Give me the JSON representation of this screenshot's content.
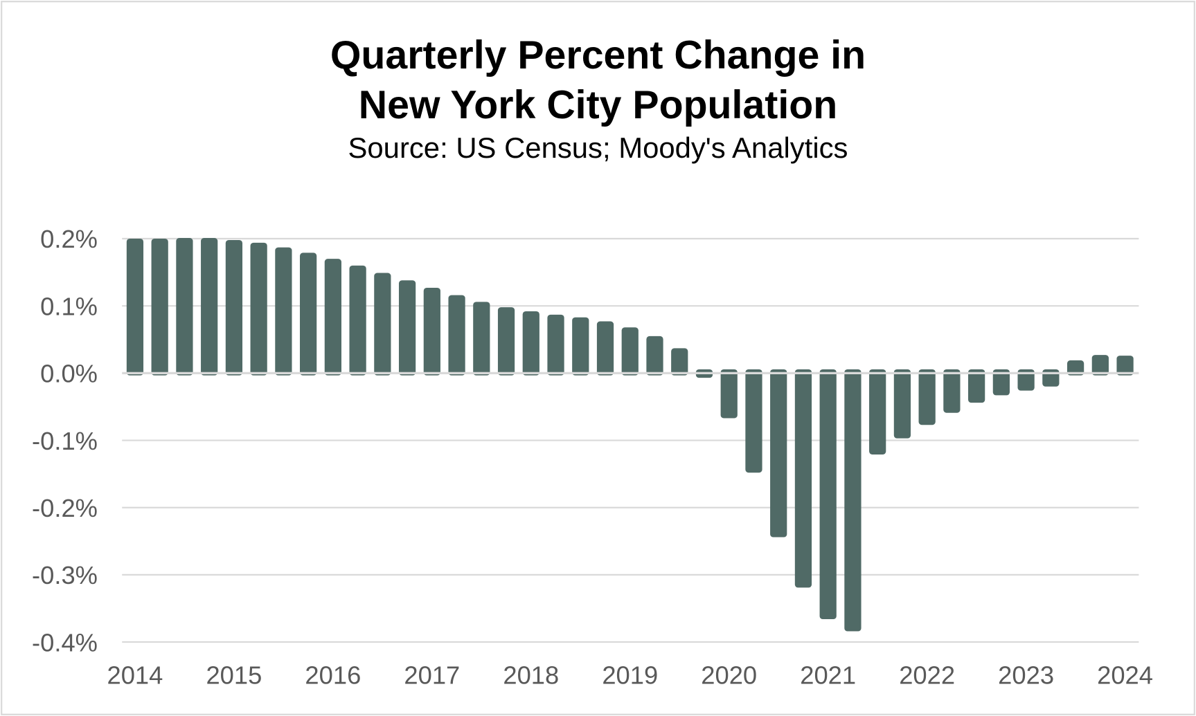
{
  "chart_data": {
    "type": "bar",
    "title_lines": [
      "Quarterly Percent Change in",
      "New York City Population"
    ],
    "subtitle": "Source: US Census; Moody's Analytics",
    "xlabel": "",
    "ylabel": "",
    "ylim": [
      -0.4,
      0.2
    ],
    "y_ticks": [
      0.2,
      0.1,
      0.0,
      -0.1,
      -0.2,
      -0.3,
      -0.4
    ],
    "y_tick_labels": [
      "0.2%",
      "0.1%",
      "0.0%",
      "-0.1%",
      "-0.2%",
      "-0.3%",
      "-0.4%"
    ],
    "x_tick_labels": [
      "2014",
      "2015",
      "2016",
      "2017",
      "2018",
      "2019",
      "2020",
      "2021",
      "2022",
      "2023",
      "2024"
    ],
    "grid": true,
    "bar_color": "#506a66",
    "categories": [
      "2014Q1",
      "2014Q2",
      "2014Q3",
      "2014Q4",
      "2015Q1",
      "2015Q2",
      "2015Q3",
      "2015Q4",
      "2016Q1",
      "2016Q2",
      "2016Q3",
      "2016Q4",
      "2017Q1",
      "2017Q2",
      "2017Q3",
      "2017Q4",
      "2018Q1",
      "2018Q2",
      "2018Q3",
      "2018Q4",
      "2019Q1",
      "2019Q2",
      "2019Q3",
      "2019Q4",
      "2020Q1",
      "2020Q2",
      "2020Q3",
      "2020Q4",
      "2021Q1",
      "2021Q2",
      "2021Q3",
      "2021Q4",
      "2022Q1",
      "2022Q2",
      "2022Q3",
      "2022Q4",
      "2023Q1",
      "2023Q2",
      "2023Q3",
      "2023Q4",
      "2024Q1"
    ],
    "values": [
      0.2,
      0.2,
      0.201,
      0.201,
      0.198,
      0.194,
      0.187,
      0.179,
      0.17,
      0.16,
      0.149,
      0.138,
      0.127,
      0.116,
      0.106,
      0.098,
      0.092,
      0.087,
      0.083,
      0.077,
      0.068,
      0.055,
      0.037,
      -0.007,
      -0.067,
      -0.148,
      -0.244,
      -0.319,
      -0.366,
      -0.384,
      -0.121,
      -0.097,
      -0.077,
      -0.059,
      -0.044,
      -0.033,
      -0.026,
      -0.02,
      0.019,
      0.027,
      0.026
    ]
  }
}
